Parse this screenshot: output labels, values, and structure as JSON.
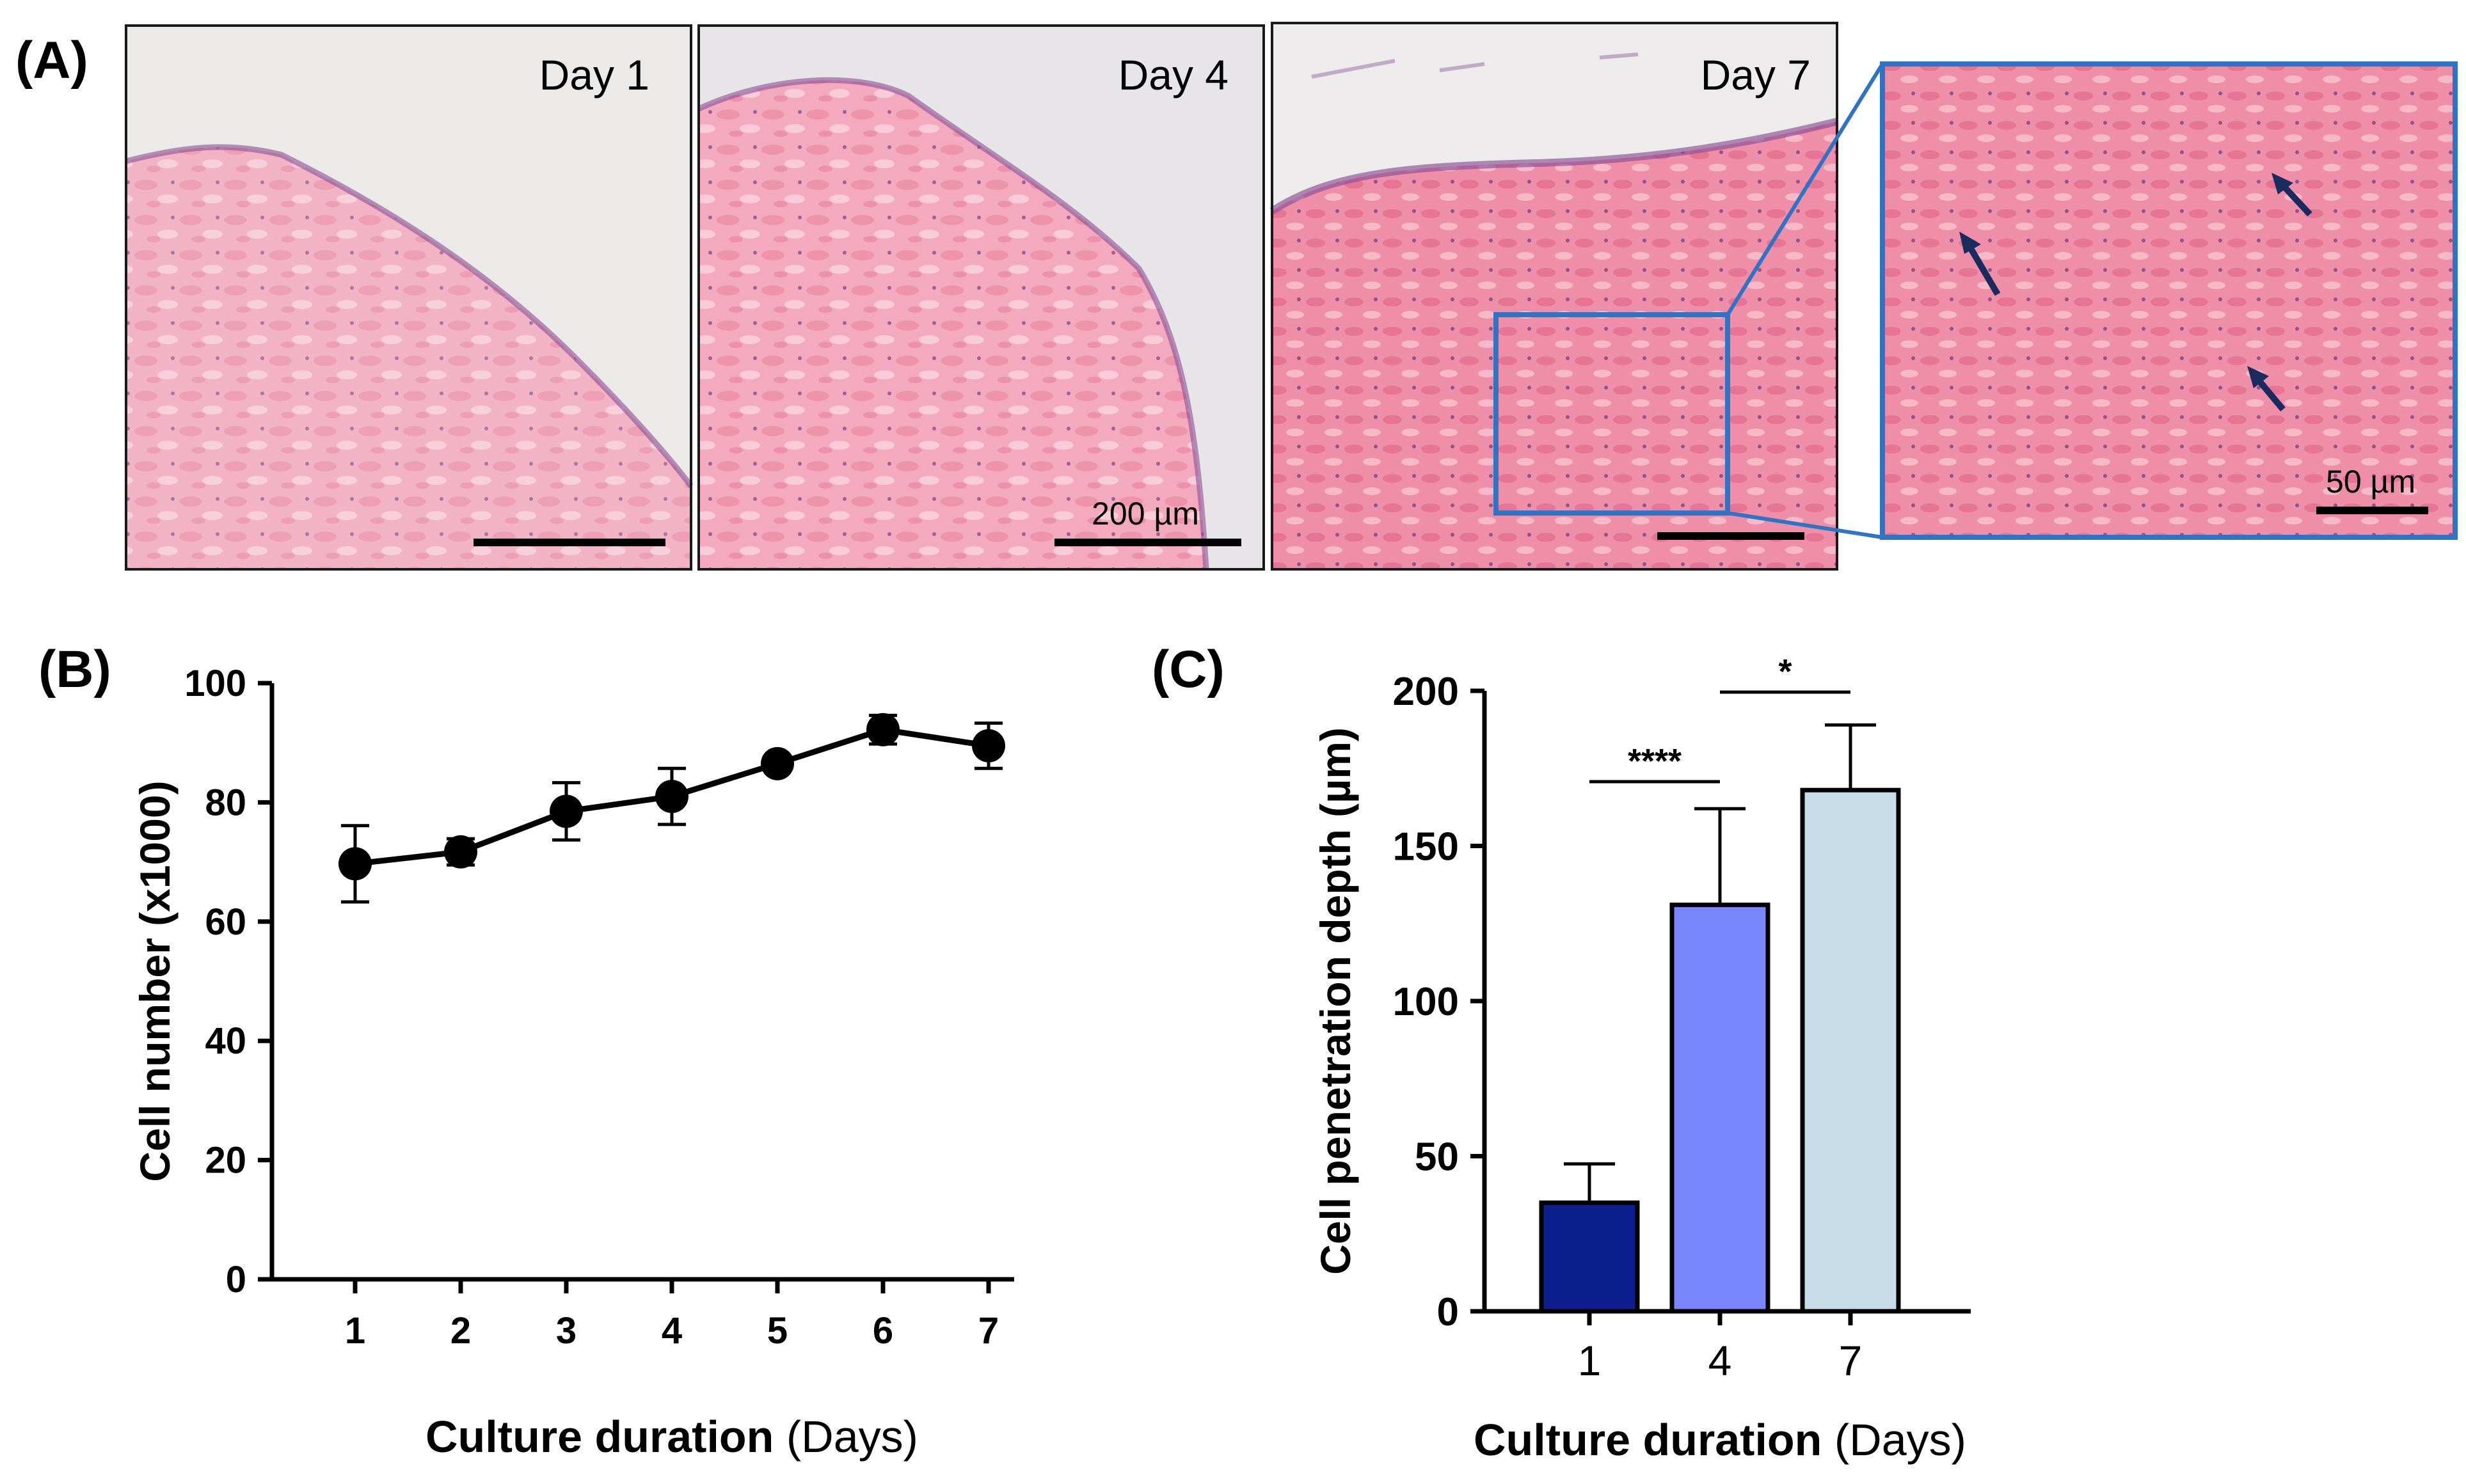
{
  "panel_labels": {
    "a": "(A)",
    "b": "(B)",
    "c": "(C)"
  },
  "micrographs": {
    "day1": {
      "label": "Day 1"
    },
    "day4": {
      "label": "Day 4",
      "scalebar": "200 µm"
    },
    "day7": {
      "label": "Day 7"
    },
    "zoom": {
      "scalebar": "50 µm"
    }
  },
  "colors": {
    "tissue_pink": "#f2a6bb",
    "zoom_frame": "#2f74c4",
    "arrow": "#1a2b5e"
  },
  "chart_data": [
    {
      "id": "B",
      "type": "line",
      "title": "",
      "xlabel_bold": "Culture duration",
      "xlabel_plain": " (Days)",
      "ylabel": "Cell number (x1000)",
      "x": [
        1,
        2,
        3,
        4,
        5,
        6,
        7
      ],
      "xticklabels": [
        "1",
        "2",
        "3",
        "4",
        "5",
        "6",
        "7"
      ],
      "series": [
        {
          "name": "Cell number",
          "values": [
            69.7,
            71.7,
            78.5,
            81,
            86.5,
            92.2,
            89.5
          ],
          "errors": [
            6.4,
            2.2,
            4.8,
            4.7,
            0,
            2.4,
            3.8
          ]
        }
      ],
      "ylim": [
        0,
        100
      ],
      "yticks": [
        0,
        20,
        40,
        60,
        80,
        100
      ]
    },
    {
      "id": "C",
      "type": "bar",
      "title": "",
      "xlabel_bold": "Culture duration",
      "xlabel_plain": " (Days)",
      "ylabel": "Cell penetration depth (µm)",
      "categories": [
        "1",
        "4",
        "7"
      ],
      "values": [
        35,
        131,
        168
      ],
      "errors": [
        12.5,
        31,
        21
      ],
      "colors": [
        "#0d1f8e",
        "#7a86fb",
        "#c9dcea"
      ],
      "ylim": [
        0,
        200
      ],
      "yticks": [
        0,
        50,
        100,
        150,
        200
      ],
      "significance": [
        {
          "from": "1",
          "to": "4",
          "label": "****"
        },
        {
          "from": "4",
          "to": "7",
          "label": "*"
        }
      ]
    }
  ]
}
